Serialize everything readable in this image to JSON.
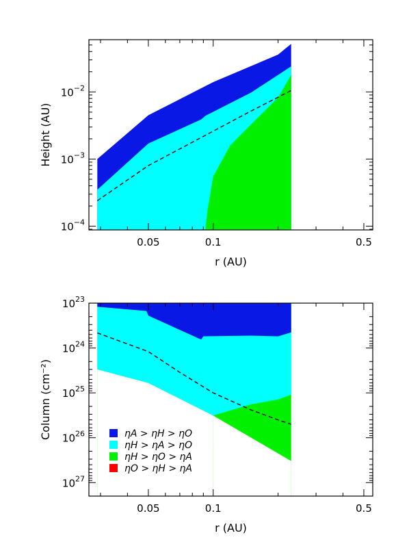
{
  "colors": {
    "blue": "#0a18e6",
    "cyan": "#00ffff",
    "green": "#00f000",
    "red": "#ff0000",
    "line": "#000000"
  },
  "chart_data": [
    {
      "type": "area",
      "title": "",
      "xlabel": "r (AU)",
      "ylabel": "Height (AU)",
      "xscale": "log",
      "yscale": "log",
      "xlim": [
        0.0265,
        0.55
      ],
      "ylim": [
        8.8e-05,
        0.06
      ],
      "xticks": [
        {
          "value": 0.05,
          "label": "0.05"
        },
        {
          "value": 0.1,
          "label": "0.1"
        },
        {
          "value": 0.5,
          "label": "0.5"
        }
      ],
      "yticks": [
        {
          "value": 0.0001,
          "base": "10",
          "exp": "−4"
        },
        {
          "value": 0.001,
          "base": "10",
          "exp": "−3"
        },
        {
          "value": 0.01,
          "base": "10",
          "exp": "−2"
        }
      ],
      "series": [
        {
          "color": "blue",
          "boundary": [
            [
              0.029,
              0.001
            ],
            [
              0.05,
              0.0045
            ],
            [
              0.1,
              0.014
            ],
            [
              0.2,
              0.036
            ],
            [
              0.23,
              0.052
            ]
          ]
        },
        {
          "color": "cyan",
          "boundary": [
            [
              0.029,
              0.00035
            ],
            [
              0.05,
              0.0017
            ],
            [
              0.088,
              0.0039
            ],
            [
              0.092,
              0.0044
            ],
            [
              0.15,
              0.0098
            ],
            [
              0.23,
              0.024
            ]
          ]
        },
        {
          "color": "green",
          "boundary": [
            [
              0.092,
              8.8e-05
            ],
            [
              0.094,
              0.00017
            ],
            [
              0.1,
              0.00055
            ],
            [
              0.12,
              0.0016
            ],
            [
              0.15,
              0.0033
            ],
            [
              0.2,
              0.0082
            ],
            [
              0.23,
              0.018
            ]
          ]
        }
      ],
      "dashed_line": [
        [
          0.029,
          0.00024
        ],
        [
          0.05,
          0.0008
        ],
        [
          0.1,
          0.0026
        ],
        [
          0.15,
          0.0052
        ],
        [
          0.23,
          0.0105
        ]
      ],
      "x_end": 0.23,
      "grid": false
    },
    {
      "type": "area",
      "title": "",
      "xlabel": "r (AU)",
      "ylabel": "Column (cm⁻²)",
      "xscale": "log",
      "yscale": "log",
      "y_inverted": true,
      "xlim": [
        0.0265,
        0.55
      ],
      "ylim": [
        1e+23,
        2e+27
      ],
      "xticks": [
        {
          "value": 0.05,
          "label": "0.05"
        },
        {
          "value": 0.1,
          "label": "0.1"
        },
        {
          "value": 0.5,
          "label": "0.5"
        }
      ],
      "yticks": [
        {
          "value": 1e+23,
          "base": "10",
          "exp": "23"
        },
        {
          "value": 1e+24,
          "base": "10",
          "exp": "24"
        },
        {
          "value": 1e+25,
          "base": "10",
          "exp": "25"
        },
        {
          "value": 1e+26,
          "base": "10",
          "exp": "26"
        },
        {
          "value": 1e+27,
          "base": "10",
          "exp": "27"
        }
      ],
      "series": [
        {
          "color": "blue",
          "boundary": [
            [
              0.029,
              1e+23
            ],
            [
              0.23,
              1e+23
            ]
          ]
        },
        {
          "color": "cyan",
          "boundary": [
            [
              0.029,
              1.2e+23
            ],
            [
              0.049,
              1.5e+23
            ],
            [
              0.05,
              1.9e+23
            ],
            [
              0.088,
              6.5e+23
            ],
            [
              0.09,
              5.5e+23
            ],
            [
              0.15,
              5.3e+23
            ],
            [
              0.2,
              5.5e+23
            ],
            [
              0.23,
              4.5e+23
            ]
          ]
        },
        {
          "color": "green",
          "boundary": [
            [
              0.029,
              3e+24
            ],
            [
              0.05,
              6e+24
            ],
            [
              0.1,
              3.2e+25
            ],
            [
              0.15,
              1.8e+25
            ],
            [
              0.2,
              1.4e+25
            ],
            [
              0.23,
              1.1e+25
            ]
          ]
        },
        {
          "color": "lower",
          "boundary": [
            [
              0.1,
              3.2e+25
            ],
            [
              0.23,
              3.3e+26
            ]
          ]
        }
      ],
      "dashed_line": [
        [
          0.029,
          4.6e+23
        ],
        [
          0.05,
          1.2e+24
        ],
        [
          0.07,
          3.5e+24
        ],
        [
          0.1,
          1e+25
        ],
        [
          0.15,
          2.4e+25
        ],
        [
          0.2,
          4e+25
        ],
        [
          0.23,
          5e+25
        ]
      ],
      "x_end": 0.23,
      "grid": false,
      "legend": {
        "position": "bottom-left",
        "entries": [
          {
            "color": "blue",
            "label": "ηA > ηH > ηO"
          },
          {
            "color": "cyan",
            "label": "ηH > ηA > ηO"
          },
          {
            "color": "green",
            "label": "ηH > ηO > ηA"
          },
          {
            "color": "red",
            "label": "ηO > ηH > ηA"
          }
        ]
      }
    }
  ]
}
